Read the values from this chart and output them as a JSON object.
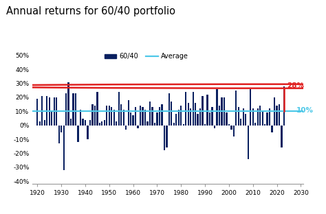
{
  "title": "Annual returns for 60/40 portfolio",
  "title_fontsize": 10.5,
  "bar_color": "#0a2060",
  "avg_color": "#4dc8e8",
  "highlight_color": "#e02020",
  "avg_value": 0.1,
  "highlight_year": 2023,
  "highlight_value": 0.28,
  "highlight_label": "28%",
  "avg_label": "10%",
  "years": [
    1920,
    1921,
    1922,
    1923,
    1924,
    1925,
    1926,
    1927,
    1928,
    1929,
    1930,
    1931,
    1932,
    1933,
    1934,
    1935,
    1936,
    1937,
    1938,
    1939,
    1940,
    1941,
    1942,
    1943,
    1944,
    1945,
    1946,
    1947,
    1948,
    1949,
    1950,
    1951,
    1952,
    1953,
    1954,
    1955,
    1956,
    1957,
    1958,
    1959,
    1960,
    1961,
    1962,
    1963,
    1964,
    1965,
    1966,
    1967,
    1968,
    1969,
    1970,
    1971,
    1972,
    1973,
    1974,
    1975,
    1976,
    1977,
    1978,
    1979,
    1980,
    1981,
    1982,
    1983,
    1984,
    1985,
    1986,
    1987,
    1988,
    1989,
    1990,
    1991,
    1992,
    1993,
    1994,
    1995,
    1996,
    1997,
    1998,
    1999,
    2000,
    2001,
    2002,
    2003,
    2004,
    2005,
    2006,
    2007,
    2008,
    2009,
    2010,
    2011,
    2012,
    2013,
    2014,
    2015,
    2016,
    2017,
    2018,
    2019,
    2020,
    2021,
    2022,
    2023
  ],
  "returns": [
    0.19,
    0.03,
    0.21,
    0.04,
    0.21,
    0.2,
    0.1,
    0.2,
    0.2,
    -0.13,
    -0.05,
    -0.32,
    0.23,
    0.31,
    0.05,
    0.23,
    0.23,
    -0.12,
    0.11,
    0.05,
    0.04,
    -0.1,
    0.04,
    0.15,
    0.14,
    0.24,
    0.02,
    0.03,
    0.04,
    0.14,
    0.14,
    0.13,
    0.11,
    0.03,
    0.24,
    0.15,
    0.11,
    -0.03,
    0.18,
    0.09,
    0.07,
    0.13,
    -0.02,
    0.14,
    0.13,
    0.11,
    0.03,
    0.17,
    0.13,
    0.02,
    0.09,
    0.13,
    0.15,
    -0.18,
    -0.16,
    0.23,
    0.17,
    0.02,
    0.08,
    0.11,
    0.14,
    0.01,
    0.24,
    0.16,
    0.12,
    0.24,
    0.16,
    0.08,
    0.12,
    0.21,
    0.01,
    0.22,
    0.09,
    0.13,
    -0.02,
    0.26,
    0.14,
    0.2,
    0.2,
    0.09,
    0.01,
    -0.03,
    -0.08,
    0.25,
    0.13,
    0.05,
    0.12,
    0.08,
    -0.24,
    0.26,
    0.12,
    0.02,
    0.12,
    0.14,
    0.1,
    0.01,
    0.09,
    0.12,
    -0.05,
    0.2,
    0.14,
    0.15,
    -0.16,
    0.28
  ],
  "xlim": [
    1918,
    2031
  ],
  "ylim": [
    -0.42,
    0.56
  ],
  "xticks": [
    1920,
    1930,
    1940,
    1950,
    1960,
    1970,
    1980,
    1990,
    2000,
    2010,
    2020,
    2030
  ],
  "yticks": [
    -0.4,
    -0.3,
    -0.2,
    -0.1,
    0.0,
    0.1,
    0.2,
    0.3,
    0.4,
    0.5
  ],
  "ytick_labels": [
    "-40%",
    "-30%",
    "-20%",
    "-10%",
    "0%",
    "10%",
    "20%",
    "30%",
    "40%",
    "50%"
  ],
  "legend_60_40_label": "60/40",
  "legend_avg_label": "Average",
  "bg_color": "#ffffff"
}
